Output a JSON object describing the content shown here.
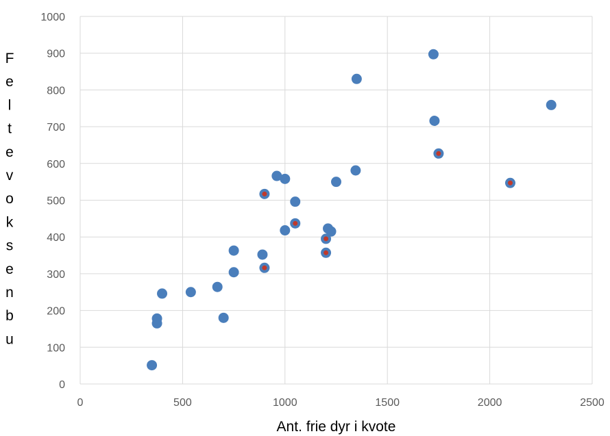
{
  "chart_data": {
    "type": "scatter",
    "title": "",
    "xlabel": "Ant. frie dyr i kvote",
    "ylabel": "Feltevoksenbu",
    "xlim": [
      0,
      2500
    ],
    "ylim": [
      0,
      1000
    ],
    "x_ticks": [
      "0",
      "500",
      "1000",
      "1500",
      "2000",
      "2500"
    ],
    "y_ticks": [
      "0",
      "100",
      "200",
      "300",
      "400",
      "500",
      "600",
      "700",
      "800",
      "900",
      "1000"
    ],
    "grid": true,
    "colors": {
      "point": "#4a7ebb",
      "highlight": "#c0392b",
      "grid": "#d9d9d9"
    },
    "series": [
      {
        "points": [
          [
            350,
            51
          ],
          [
            375,
            178
          ],
          [
            375,
            165
          ],
          [
            400,
            246
          ],
          [
            540,
            250
          ],
          [
            670,
            264
          ],
          [
            700,
            180
          ],
          [
            750,
            363
          ],
          [
            750,
            304
          ],
          [
            890,
            352
          ],
          [
            960,
            566
          ],
          [
            1000,
            558
          ],
          [
            1000,
            418
          ],
          [
            1050,
            496
          ],
          [
            1210,
            423
          ],
          [
            1225,
            415
          ],
          [
            1250,
            550
          ],
          [
            1345,
            581
          ],
          [
            1350,
            830
          ],
          [
            1725,
            897
          ],
          [
            1730,
            716
          ],
          [
            2300,
            759
          ]
        ]
      },
      {
        "highlighted": true,
        "points": [
          [
            900,
            517
          ],
          [
            900,
            316
          ],
          [
            1050,
            437
          ],
          [
            1200,
            395
          ],
          [
            1200,
            357
          ],
          [
            1750,
            627
          ],
          [
            2100,
            547
          ]
        ]
      }
    ]
  }
}
